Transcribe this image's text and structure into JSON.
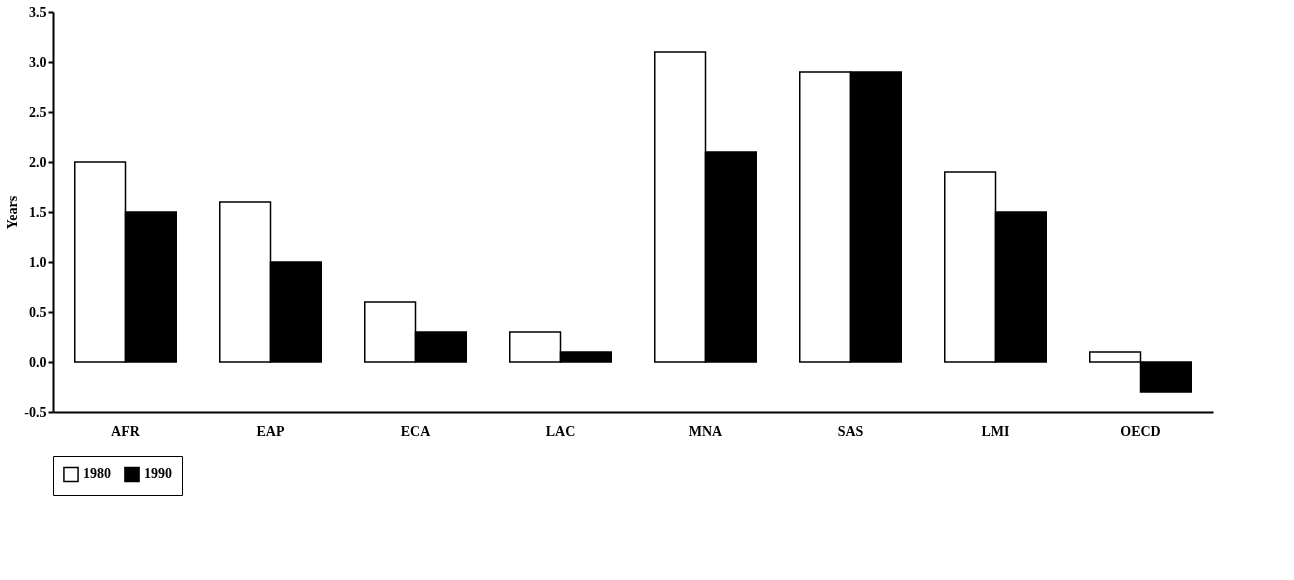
{
  "chart_data": {
    "type": "bar",
    "ylabel": "Years",
    "categories": [
      "AFR",
      "EAP",
      "ECA",
      "LAC",
      "MNA",
      "SAS",
      "LMI",
      "OECD"
    ],
    "series": [
      {
        "name": "1980",
        "color": "#ffffff",
        "values": [
          2.0,
          1.6,
          0.6,
          0.3,
          3.1,
          2.9,
          1.9,
          0.1
        ]
      },
      {
        "name": "1990",
        "color": "#000000",
        "values": [
          1.5,
          1.0,
          0.3,
          0.1,
          2.1,
          2.9,
          1.5,
          -0.3
        ]
      }
    ],
    "ylim": [
      -0.5,
      3.5
    ],
    "yticks": [
      -0.5,
      {
        "value": 0,
        "label": "0.0"
      },
      0.5,
      {
        "value": 1,
        "label": "1.0"
      },
      1.5,
      {
        "value": 2,
        "label": "2.0"
      },
      2.5,
      {
        "value": 3,
        "label": "3.0"
      },
      3.5
    ],
    "legend": "bottom",
    "grid": false
  }
}
